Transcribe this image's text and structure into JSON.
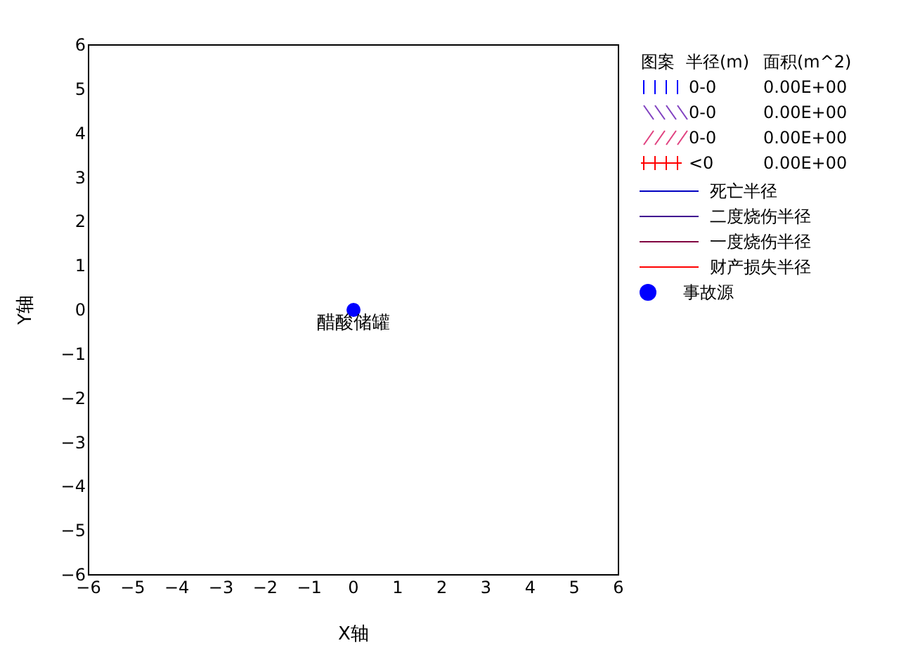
{
  "chart_data": {
    "type": "scatter",
    "xlabel": "X轴",
    "ylabel": "Y轴",
    "xlim": [
      -6,
      6
    ],
    "ylim": [
      -6,
      6
    ],
    "xticks": [
      -6,
      -5,
      -4,
      -3,
      -2,
      -1,
      0,
      1,
      2,
      3,
      4,
      5,
      6
    ],
    "yticks": [
      -6,
      -5,
      -4,
      -3,
      -2,
      -1,
      0,
      1,
      2,
      3,
      4,
      5,
      6
    ],
    "grid": false,
    "legend": "right",
    "marker": "circle",
    "series": [
      {
        "name": "死亡半径",
        "type": "line",
        "color": "#0000c0"
      },
      {
        "name": "二度烧伤半径",
        "type": "line",
        "color": "#400090"
      },
      {
        "name": "一度烧伤半径",
        "type": "line",
        "color": "#800040"
      },
      {
        "name": "财产损失半径",
        "type": "line",
        "color": "#ff0000"
      },
      {
        "name": "事故源",
        "color": "#0000ff",
        "x": [
          0
        ],
        "values": [
          0
        ]
      }
    ],
    "annotations": [
      {
        "text": "醋酸储罐",
        "x": 0,
        "y": 0
      },
      "图案",
      "半径(m)",
      "面积(m^2)",
      "0-0",
      "0.00E+00",
      "0-0",
      "0.00E+00",
      "0-0",
      "0.00E+00",
      "<0",
      "0.00E+00"
    ]
  }
}
